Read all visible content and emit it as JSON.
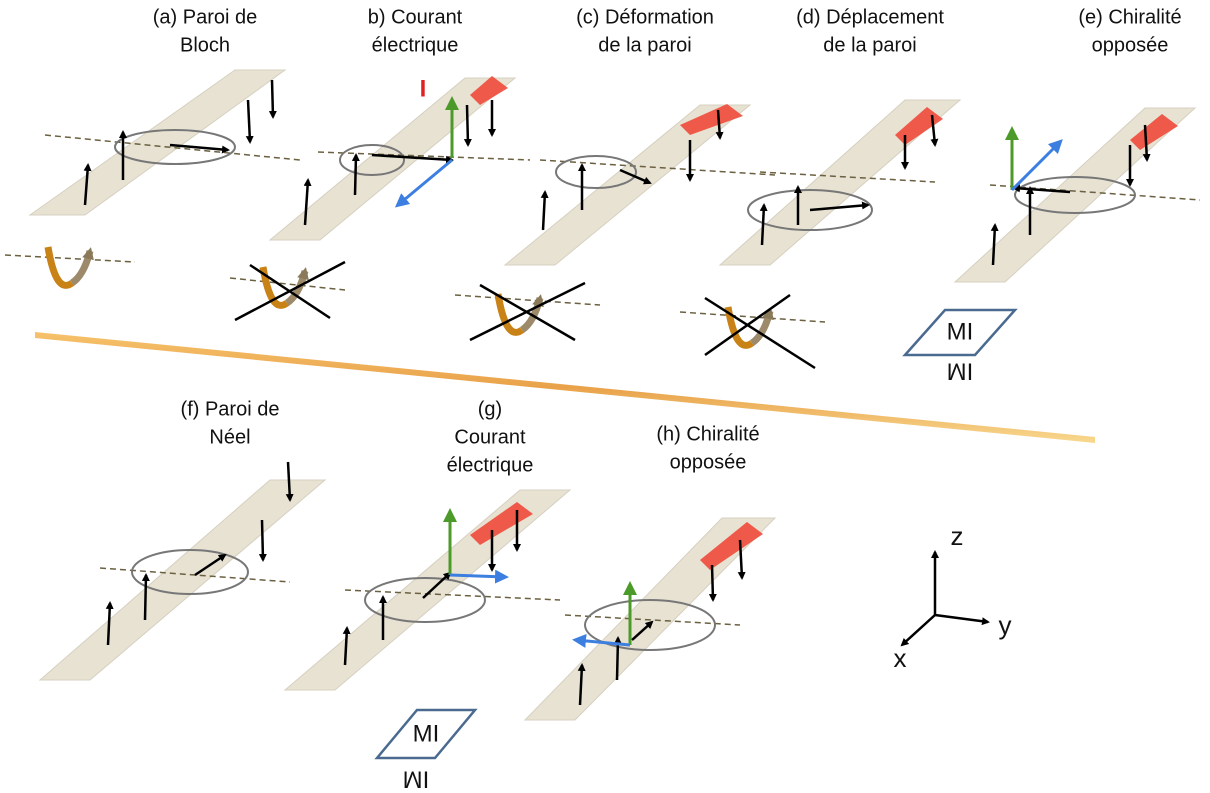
{
  "panels": [
    {
      "label": [
        "(a) Paroi de",
        "Bloch"
      ]
    },
    {
      "label": [
        "b) Courant",
        "électrique"
      ]
    },
    {
      "label": [
        "(c) Déformation",
        "de la paroi"
      ]
    },
    {
      "label": [
        "(d) Déplacement",
        "de la paroi"
      ]
    },
    {
      "label": [
        "(e) Chiralité",
        "opposée"
      ]
    },
    {
      "label": [
        "(f)  Paroi de",
        "Néel"
      ]
    },
    {
      "label": [
        "(g)",
        "Courant",
        "électrique"
      ]
    },
    {
      "label": [
        "(h) Chiralité",
        "opposée"
      ]
    }
  ],
  "current": "I",
  "mirrors": [
    {
      "text": "MI",
      "reflection": "MI"
    },
    {
      "text": "MI",
      "reflection": "MI"
    }
  ],
  "axes": {
    "z": "z",
    "y": "y",
    "x": "x"
  }
}
